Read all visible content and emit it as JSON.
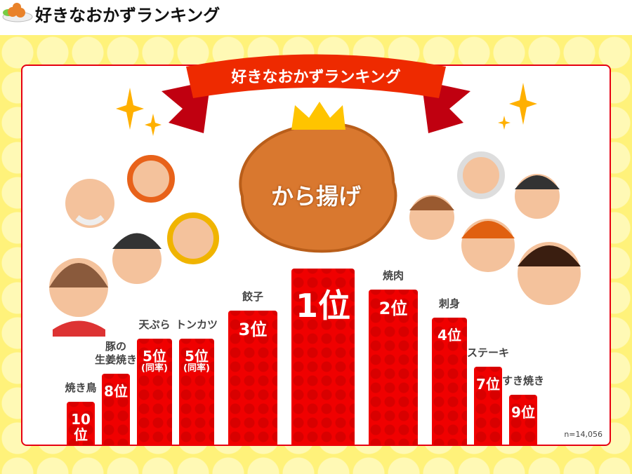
{
  "header": {
    "title": "好きなおかずランキング"
  },
  "banner": {
    "title": "好きなおかずランキング"
  },
  "top_item": "から揚げ",
  "sample_size": "n=14,056",
  "colors": {
    "bar": "#f00000",
    "border": "#e60012",
    "background": "#fff27a"
  },
  "chart_data": {
    "type": "bar",
    "title": "好きなおかずランキング",
    "categories": [
      "焼き鳥",
      "豚の生姜焼き",
      "天ぷら",
      "トンカツ",
      "餃子",
      "から揚げ",
      "焼肉",
      "刺身",
      "ステーキ",
      "すき焼き"
    ],
    "bars": [
      {
        "label": "焼き鳥",
        "rank": 10,
        "rank_label": "10位",
        "note": ""
      },
      {
        "label": "豚の\n生姜焼き",
        "rank": 8,
        "rank_label": "8位",
        "note": ""
      },
      {
        "label": "天ぷら",
        "rank": 5,
        "rank_label": "5位",
        "note": "(同率)"
      },
      {
        "label": "トンカツ",
        "rank": 5,
        "rank_label": "5位",
        "note": "(同率)"
      },
      {
        "label": "餃子",
        "rank": 3,
        "rank_label": "3位",
        "note": ""
      },
      {
        "label": "",
        "rank": 1,
        "rank_label": "1位",
        "note": ""
      },
      {
        "label": "焼肉",
        "rank": 2,
        "rank_label": "2位",
        "note": ""
      },
      {
        "label": "刺身",
        "rank": 4,
        "rank_label": "4位",
        "note": ""
      },
      {
        "label": "ステーキ",
        "rank": 7,
        "rank_label": "7位",
        "note": ""
      },
      {
        "label": "すき焼き",
        "rank": 9,
        "rank_label": "9位",
        "note": ""
      }
    ]
  }
}
